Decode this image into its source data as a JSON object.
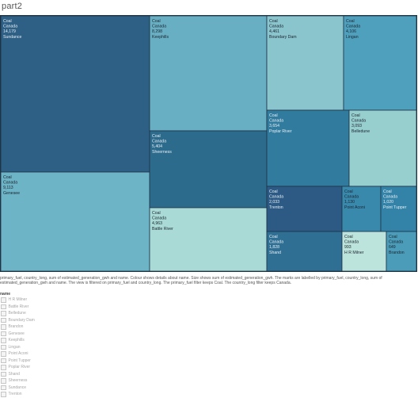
{
  "page": {
    "title": "part2"
  },
  "chart_data": {
    "type": "treemap",
    "size_measure": "sum of estimated_generation_gwh",
    "color_measure": "name",
    "items": [
      {
        "fuel": "Coal",
        "country": "Canada",
        "value": 14179,
        "value_label": "14,179",
        "name": "Sundance",
        "color": "#2e5f85"
      },
      {
        "fuel": "Coal",
        "country": "Canada",
        "value": 9113,
        "value_label": "9,113",
        "name": "Genesee",
        "color": "#6cb4c6"
      },
      {
        "fuel": "Coal",
        "country": "Canada",
        "value": 8298,
        "value_label": "8,298",
        "name": "Keephills",
        "color": "#69afc3"
      },
      {
        "fuel": "Coal",
        "country": "Canada",
        "value": 5404,
        "value_label": "5,404",
        "name": "Sheerness",
        "color": "#2d6b8d"
      },
      {
        "fuel": "Coal",
        "country": "Canada",
        "value": 4963,
        "value_label": "4,963",
        "name": "Battle River",
        "color": "#a9dad6"
      },
      {
        "fuel": "Coal",
        "country": "Canada",
        "value": 4461,
        "value_label": "4,461",
        "name": "Boundary Dam",
        "color": "#8ac4cd"
      },
      {
        "fuel": "Coal",
        "country": "Canada",
        "value": 4106,
        "value_label": "4,106",
        "name": "Lingan",
        "color": "#4fa0bc"
      },
      {
        "fuel": "Coal",
        "country": "Canada",
        "value": 3654,
        "value_label": "3,654",
        "name": "Poplar River",
        "color": "#317b9e"
      },
      {
        "fuel": "Coal",
        "country": "Canada",
        "value": 3093,
        "value_label": "3,093",
        "name": "Belledune",
        "color": "#97cece"
      },
      {
        "fuel": "Coal",
        "country": "Canada",
        "value": 2033,
        "value_label": "2,033",
        "name": "Trenton",
        "color": "#2c5a85"
      },
      {
        "fuel": "Coal",
        "country": "Canada",
        "value": 1130,
        "value_label": "1,130",
        "name": "Point Aconi",
        "color": "#3989ad"
      },
      {
        "fuel": "Coal",
        "country": "Canada",
        "value": 1020,
        "value_label": "1,020",
        "name": "Point Tupper",
        "color": "#3383a8"
      },
      {
        "fuel": "Coal",
        "country": "Canada",
        "value": 1828,
        "value_label": "1,828",
        "name": "Shand",
        "color": "#2f6f94"
      },
      {
        "fuel": "Coal",
        "country": "Canada",
        "value": 993,
        "value_label": "993",
        "name": "H R Milner",
        "color": "#bde4dc"
      },
      {
        "fuel": "Coal",
        "country": "Canada",
        "value": 649,
        "value_label": "649",
        "name": "Brandon",
        "color": "#4a9cb8"
      }
    ]
  },
  "caption": "primary_fuel, country_long, sum of estimated_generation_gwh and name.  Colour shows details about name.  Size shows sum of estimated_generation_gwh.  The marks are labelled by primary_fuel, country_long, sum of estimated_generation_gwh and name. The view is filtered on primary_fuel and country_long. The primary_fuel filter keeps Coal. The country_long filter keeps Canada.",
  "legend": {
    "title": "name",
    "items": [
      "H R Milner",
      "Battle River",
      "Belledune",
      "Boundary Dam",
      "Brandon",
      "Genesee",
      "Keephills",
      "Lingan",
      "Point Aconi",
      "Point Tupper",
      "Poplar River",
      "Shand",
      "Sheerness",
      "Sundance",
      "Trenton"
    ]
  }
}
